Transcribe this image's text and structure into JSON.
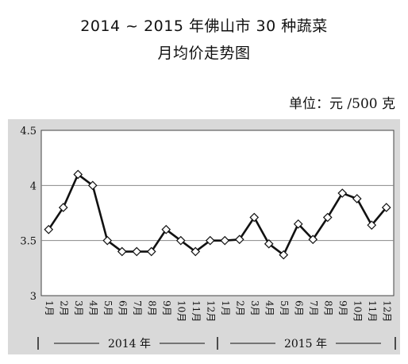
{
  "chart_data": {
    "type": "line",
    "title": "2014 ~ 2015 年佛山市 30 种蔬菜",
    "subtitle": "月均价走势图",
    "unit_label": "单位：元 /500 克",
    "ylim": [
      3,
      4.5
    ],
    "yticks": [
      "3",
      "3.5",
      "4",
      "4.5"
    ],
    "ytick_values": [
      3,
      3.5,
      4,
      4.5
    ],
    "grid": true,
    "categories": [
      "1月",
      "2月",
      "3月",
      "4月",
      "5月",
      "6月",
      "7月",
      "8月",
      "9月",
      "10月",
      "11月",
      "12月",
      "1月",
      "2月",
      "3月",
      "4月",
      "5月",
      "6月",
      "7月",
      "8月",
      "9月",
      "10月",
      "11月",
      "12月"
    ],
    "groups": [
      {
        "label": "2014 年",
        "count": 12
      },
      {
        "label": "2015 年",
        "count": 12
      }
    ],
    "series": [
      {
        "values": [
          3.6,
          3.8,
          4.1,
          4.0,
          3.5,
          3.4,
          3.4,
          3.4,
          3.6,
          3.5,
          3.4,
          3.5,
          3.5,
          3.51,
          3.71,
          3.47,
          3.37,
          3.65,
          3.51,
          3.71,
          3.93,
          3.88,
          3.64,
          3.8
        ],
        "color": "#111111"
      }
    ],
    "marker": "diamond"
  }
}
